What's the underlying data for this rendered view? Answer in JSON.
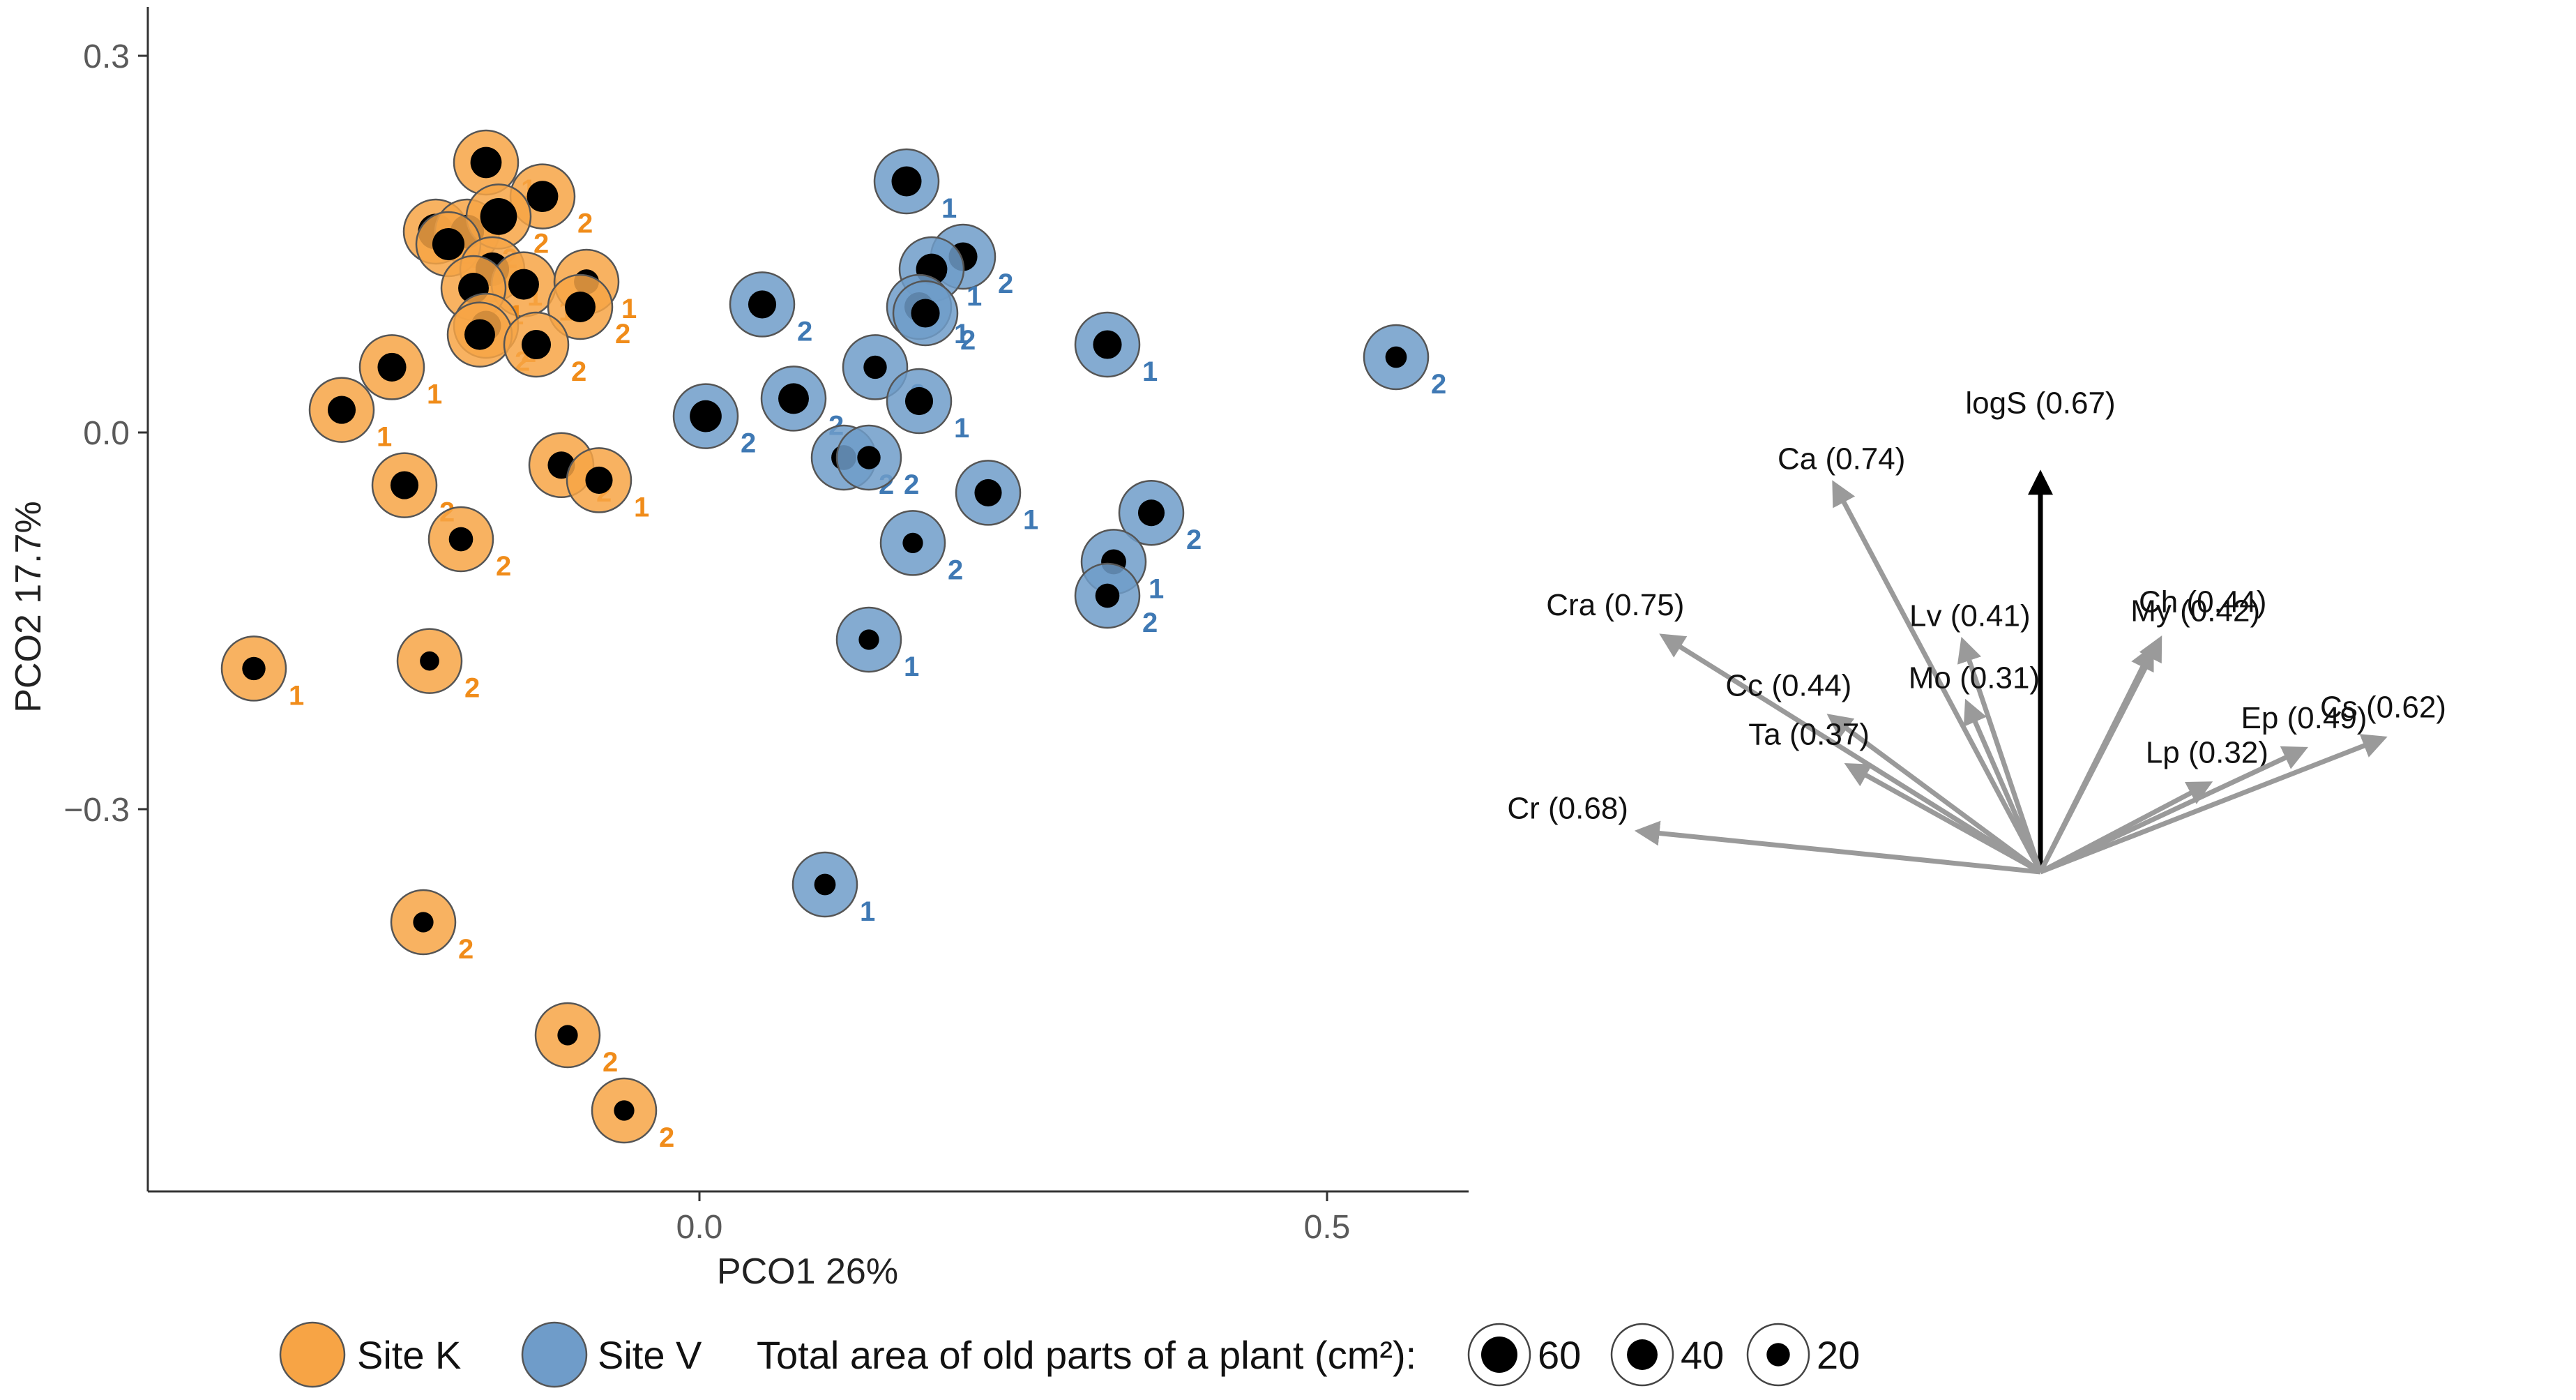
{
  "chart_data": {
    "type": "scatter",
    "subtype": "PCO ordination biplot with bubble points and correlation vectors",
    "xlabel": "PCO1  26%",
    "ylabel": "PCO2  17.7%",
    "xlim": [
      -0.44,
      0.61
    ],
    "ylim": [
      -0.6,
      0.32
    ],
    "x_ticks": [
      {
        "value": 0.0,
        "label": "0.0"
      },
      {
        "value": 0.5,
        "label": "0.5"
      }
    ],
    "y_ticks": [
      {
        "value": 0.3,
        "label": "0.3"
      },
      {
        "value": 0.0,
        "label": "0.0"
      },
      {
        "value": -0.3,
        "label": "−0.3"
      }
    ],
    "grid": false,
    "colors": {
      "site_k": "#F7A445",
      "site_k_label": "#F08C1A",
      "site_v": "#6F9CC9",
      "site_v_label": "#3F79B4",
      "vector": "#9A9A9A",
      "vector_main": "#000000"
    },
    "series": [
      {
        "name": "Site K",
        "points": [
          {
            "x": -0.17,
            "y": 0.215,
            "area": 42,
            "label": "1"
          },
          {
            "x": -0.125,
            "y": 0.188,
            "area": 42,
            "label": "2"
          },
          {
            "x": -0.21,
            "y": 0.16,
            "area": 58,
            "label": "2"
          },
          {
            "x": -0.185,
            "y": 0.16,
            "area": 50,
            "label": "2"
          },
          {
            "x": -0.16,
            "y": 0.172,
            "area": 62,
            "label": "2"
          },
          {
            "x": -0.2,
            "y": 0.15,
            "area": 45,
            "label": "1"
          },
          {
            "x": -0.165,
            "y": 0.13,
            "area": 50,
            "label": "1"
          },
          {
            "x": -0.14,
            "y": 0.118,
            "area": 40,
            "label": "1"
          },
          {
            "x": -0.18,
            "y": 0.115,
            "area": 40,
            "label": "1"
          },
          {
            "x": -0.09,
            "y": 0.12,
            "area": 24,
            "label": "1"
          },
          {
            "x": -0.095,
            "y": 0.1,
            "area": 40,
            "label": "2"
          },
          {
            "x": -0.17,
            "y": 0.085,
            "area": 38,
            "label": "2"
          },
          {
            "x": -0.175,
            "y": 0.078,
            "area": 40,
            "label": "2"
          },
          {
            "x": -0.13,
            "y": 0.07,
            "area": 36,
            "label": "2"
          },
          {
            "x": -0.245,
            "y": 0.052,
            "area": 34,
            "label": "1"
          },
          {
            "x": -0.285,
            "y": 0.018,
            "area": 32,
            "label": "1"
          },
          {
            "x": -0.11,
            "y": -0.026,
            "area": 30,
            "label": "2"
          },
          {
            "x": -0.08,
            "y": -0.038,
            "area": 30,
            "label": "1"
          },
          {
            "x": -0.235,
            "y": -0.042,
            "area": 32,
            "label": "2"
          },
          {
            "x": -0.19,
            "y": -0.085,
            "area": 22,
            "label": "2"
          },
          {
            "x": -0.355,
            "y": -0.188,
            "area": 20,
            "label": "1"
          },
          {
            "x": -0.215,
            "y": -0.182,
            "area": 12,
            "label": "2"
          },
          {
            "x": -0.22,
            "y": -0.39,
            "area": 14,
            "label": "2"
          },
          {
            "x": -0.105,
            "y": -0.48,
            "area": 14,
            "label": "2"
          },
          {
            "x": -0.06,
            "y": -0.54,
            "area": 14,
            "label": "2"
          }
        ]
      },
      {
        "name": "Site V",
        "points": [
          {
            "x": 0.165,
            "y": 0.2,
            "area": 38,
            "label": "1"
          },
          {
            "x": 0.21,
            "y": 0.14,
            "area": 34,
            "label": "2"
          },
          {
            "x": 0.185,
            "y": 0.13,
            "area": 42,
            "label": "1"
          },
          {
            "x": 0.175,
            "y": 0.1,
            "area": 36,
            "label": "1"
          },
          {
            "x": 0.18,
            "y": 0.095,
            "area": 34,
            "label": "2"
          },
          {
            "x": 0.05,
            "y": 0.102,
            "area": 32,
            "label": "2"
          },
          {
            "x": 0.325,
            "y": 0.07,
            "area": 34,
            "label": "1"
          },
          {
            "x": 0.555,
            "y": 0.06,
            "area": 16,
            "label": "2"
          },
          {
            "x": 0.14,
            "y": 0.052,
            "area": 20,
            "label": "2"
          },
          {
            "x": 0.075,
            "y": 0.027,
            "area": 40,
            "label": "2"
          },
          {
            "x": 0.175,
            "y": 0.025,
            "area": 32,
            "label": "1"
          },
          {
            "x": 0.005,
            "y": 0.013,
            "area": 44,
            "label": "2"
          },
          {
            "x": 0.115,
            "y": -0.02,
            "area": 24,
            "label": "2"
          },
          {
            "x": 0.135,
            "y": -0.02,
            "area": 20,
            "label": "2"
          },
          {
            "x": 0.23,
            "y": -0.048,
            "area": 30,
            "label": "1"
          },
          {
            "x": 0.36,
            "y": -0.064,
            "area": 28,
            "label": "2"
          },
          {
            "x": 0.17,
            "y": -0.088,
            "area": 14,
            "label": "2"
          },
          {
            "x": 0.33,
            "y": -0.103,
            "area": 24,
            "label": "1"
          },
          {
            "x": 0.325,
            "y": -0.13,
            "area": 22,
            "label": "2"
          },
          {
            "x": 0.135,
            "y": -0.165,
            "area": 14,
            "label": "1"
          },
          {
            "x": 0.1,
            "y": -0.36,
            "area": 16,
            "label": "1"
          }
        ]
      }
    ],
    "vectors": [
      {
        "label": "logS (0.67)",
        "angle": 90,
        "r": 0.67,
        "main": true
      },
      {
        "label": "Ca (0.74)",
        "angle": 118.0,
        "r": 0.74
      },
      {
        "label": "Lv (0.41)",
        "angle": 108.6,
        "r": 0.41
      },
      {
        "label": "Cra (0.75)",
        "angle": 148.0,
        "r": 0.75
      },
      {
        "label": "Cc (0.44)",
        "angle": 143.5,
        "r": 0.44
      },
      {
        "label": "Mo (0.31)",
        "angle": 113.5,
        "r": 0.31
      },
      {
        "label": "Ta (0.37)",
        "angle": 151.0,
        "r": 0.37
      },
      {
        "label": "Cr (0.68)",
        "angle": 174.2,
        "r": 0.68
      },
      {
        "label": "Ch (0.44)",
        "angle": 62.8,
        "r": 0.44
      },
      {
        "label": "My (0.42)",
        "angle": 63.5,
        "r": 0.42
      },
      {
        "label": "Lp (0.32)",
        "angle": 27.7,
        "r": 0.32
      },
      {
        "label": "Ep (0.49)",
        "angle": 25.0,
        "r": 0.49
      },
      {
        "label": "Cs (0.62)",
        "angle": 21.3,
        "r": 0.62
      }
    ],
    "legend": {
      "position": "bottom",
      "sites": [
        "Site K",
        "Site V"
      ],
      "size_title": "Total area of old parts of a plant (cm²):",
      "size_keys": [
        {
          "value": 60,
          "label": "60"
        },
        {
          "value": 40,
          "label": "40"
        },
        {
          "value": 20,
          "label": "20"
        }
      ]
    }
  }
}
